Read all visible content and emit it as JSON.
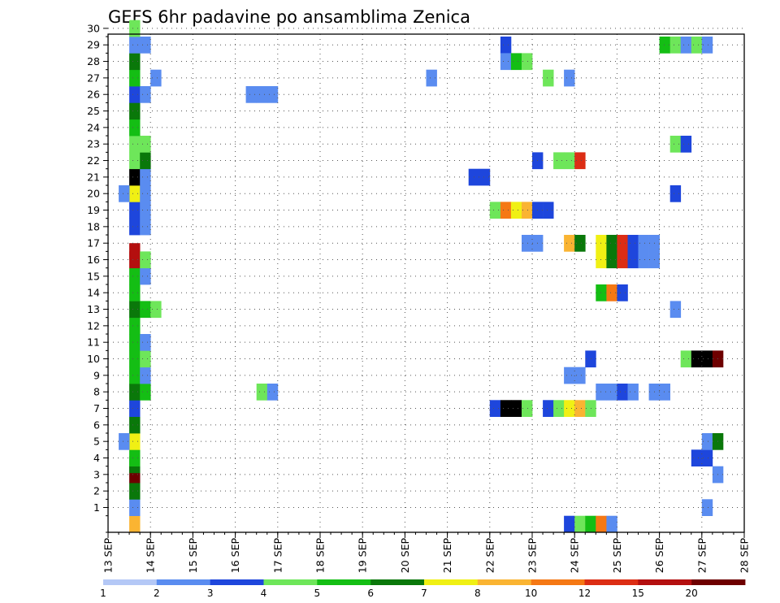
{
  "chart_data": {
    "type": "heatmap",
    "title": "GEFS 6hr padavine po ansamblima Zenica",
    "xlabel": "",
    "ylabel": "",
    "x_ticks": [
      "13 SEP",
      "14 SEP",
      "15 SEP",
      "16 SEP",
      "17 SEP",
      "18 SEP",
      "19 SEP",
      "20 SEP",
      "21 SEP",
      "22 SEP",
      "23 SEP",
      "24 SEP",
      "25 SEP",
      "26 SEP",
      "27 SEP",
      "28 SEP"
    ],
    "y_ticks": [
      "1",
      "2",
      "3",
      "4",
      "5",
      "6",
      "7",
      "8",
      "9",
      "10",
      "11",
      "12",
      "13",
      "14",
      "15",
      "16",
      "17",
      "18",
      "19",
      "20",
      "21",
      "22",
      "23",
      "24",
      "25",
      "26",
      "27",
      "28",
      "29",
      "30"
    ],
    "x_step": "6hr",
    "grid": true,
    "colorbar": {
      "labels": [
        "1",
        "2",
        "3",
        "4",
        "5",
        "6",
        "7",
        "8",
        "10",
        "12",
        "15",
        "20"
      ],
      "colors": [
        "#b4c8f6",
        "#5a8cf0",
        "#1e46dc",
        "#6ee65a",
        "#14be14",
        "#0a780a",
        "#f0f014",
        "#fab432",
        "#f57814",
        "#dc2d14",
        "#b40f0f",
        "#6e0000"
      ]
    },
    "cells": [
      [
        13.5,
        0,
        7
      ],
      [
        13.5,
        1,
        1
      ],
      [
        13.5,
        2,
        5
      ],
      [
        13.5,
        3,
        11
      ],
      [
        13.5,
        3.6,
        5
      ],
      [
        13.5,
        4,
        4
      ],
      [
        13.5,
        5,
        6
      ],
      [
        13.25,
        5,
        1
      ],
      [
        13.5,
        6,
        5
      ],
      [
        13.5,
        7,
        2
      ],
      [
        13.5,
        8,
        5
      ],
      [
        13.75,
        8,
        4
      ],
      [
        13.5,
        9,
        4
      ],
      [
        13.75,
        9,
        1
      ],
      [
        13.5,
        10,
        4
      ],
      [
        13.75,
        10,
        3
      ],
      [
        13.5,
        11,
        4
      ],
      [
        13.75,
        11,
        1
      ],
      [
        13.5,
        12,
        4
      ],
      [
        13.5,
        13,
        5
      ],
      [
        13.75,
        13,
        4
      ],
      [
        14.0,
        13,
        3
      ],
      [
        13.5,
        14,
        4
      ],
      [
        13.5,
        15,
        4
      ],
      [
        13.75,
        15,
        1
      ],
      [
        13.5,
        16,
        10
      ],
      [
        13.5,
        16.5,
        10
      ],
      [
        13.75,
        16,
        3
      ],
      [
        13.5,
        18,
        2
      ],
      [
        13.75,
        18,
        1
      ],
      [
        13.5,
        19,
        2
      ],
      [
        13.75,
        19,
        1
      ],
      [
        13.5,
        20,
        6
      ],
      [
        13.25,
        20,
        1
      ],
      [
        13.75,
        20,
        1
      ],
      [
        13.5,
        21,
        12
      ],
      [
        13.75,
        21,
        1
      ],
      [
        13.5,
        22,
        3
      ],
      [
        13.75,
        22,
        5
      ],
      [
        13.5,
        23,
        3
      ],
      [
        13.75,
        23,
        3
      ],
      [
        13.5,
        24,
        4
      ],
      [
        13.5,
        25,
        5
      ],
      [
        13.5,
        26,
        2
      ],
      [
        13.75,
        26,
        1
      ],
      [
        13.5,
        27,
        4
      ],
      [
        14.0,
        27,
        1
      ],
      [
        13.5,
        28,
        5
      ],
      [
        13.5,
        29,
        1
      ],
      [
        13.75,
        29,
        1
      ],
      [
        13.5,
        30,
        3
      ],
      [
        16.25,
        26,
        1
      ],
      [
        16.5,
        26,
        1
      ],
      [
        16.75,
        26,
        1
      ],
      [
        16.5,
        8,
        3
      ],
      [
        16.75,
        8,
        1
      ],
      [
        20.5,
        27,
        1
      ],
      [
        21.5,
        21,
        2
      ],
      [
        21.75,
        21,
        2
      ],
      [
        22.0,
        7,
        2
      ],
      [
        22.25,
        7,
        12
      ],
      [
        22.5,
        7,
        12
      ],
      [
        22.75,
        7,
        3
      ],
      [
        22.25,
        29,
        2
      ],
      [
        22.25,
        28,
        1
      ],
      [
        22.5,
        28,
        4
      ],
      [
        22.75,
        28,
        3
      ],
      [
        22.0,
        19,
        3
      ],
      [
        22.25,
        19,
        8
      ],
      [
        22.5,
        19,
        6
      ],
      [
        22.75,
        19,
        7
      ],
      [
        23.0,
        19,
        2
      ],
      [
        23.25,
        19,
        2
      ],
      [
        22.75,
        17,
        1
      ],
      [
        23.0,
        17,
        1
      ],
      [
        23.0,
        22,
        2
      ],
      [
        23.25,
        7,
        2
      ],
      [
        23.5,
        7,
        3
      ],
      [
        23.75,
        7,
        6
      ],
      [
        24.0,
        7,
        7
      ],
      [
        24.25,
        7,
        3
      ],
      [
        23.25,
        27,
        3
      ],
      [
        23.5,
        22,
        3
      ],
      [
        23.75,
        22,
        3
      ],
      [
        24.0,
        22,
        9
      ],
      [
        23.75,
        17,
        7
      ],
      [
        24.0,
        17,
        5
      ],
      [
        23.75,
        27,
        1
      ],
      [
        23.75,
        9,
        1
      ],
      [
        24.0,
        9,
        1
      ],
      [
        24.25,
        10,
        2
      ],
      [
        23.75,
        0,
        2
      ],
      [
        24.0,
        0,
        3
      ],
      [
        24.25,
        0,
        4
      ],
      [
        24.5,
        0,
        8
      ],
      [
        24.75,
        0,
        1
      ],
      [
        24.5,
        17,
        6
      ],
      [
        24.75,
        17,
        5
      ],
      [
        25.0,
        17,
        9
      ],
      [
        25.25,
        17,
        2
      ],
      [
        25.5,
        17,
        1
      ],
      [
        25.75,
        17,
        1
      ],
      [
        24.5,
        16,
        6
      ],
      [
        24.75,
        16,
        5
      ],
      [
        25.0,
        16,
        9
      ],
      [
        25.25,
        16,
        2
      ],
      [
        25.5,
        16,
        1
      ],
      [
        25.75,
        16,
        1
      ],
      [
        24.5,
        14,
        4
      ],
      [
        24.75,
        14,
        8
      ],
      [
        25.0,
        14,
        2
      ],
      [
        24.5,
        8,
        1
      ],
      [
        24.75,
        8,
        1
      ],
      [
        25.0,
        8,
        2
      ],
      [
        25.25,
        8,
        1
      ],
      [
        25.75,
        8,
        1
      ],
      [
        26.0,
        8,
        1
      ],
      [
        26.25,
        13,
        1
      ],
      [
        26.25,
        20,
        2
      ],
      [
        26.25,
        23,
        3
      ],
      [
        26.5,
        23,
        2
      ],
      [
        26.0,
        29,
        4
      ],
      [
        26.25,
        29,
        3
      ],
      [
        26.5,
        29,
        1
      ],
      [
        26.75,
        29,
        3
      ],
      [
        27.0,
        29,
        1
      ],
      [
        26.75,
        4,
        2
      ],
      [
        27.0,
        4,
        2
      ],
      [
        27.0,
        5,
        1
      ],
      [
        27.25,
        5,
        5
      ],
      [
        27.0,
        1,
        1
      ],
      [
        27.25,
        3,
        1
      ],
      [
        26.5,
        10,
        3
      ],
      [
        26.75,
        10,
        12
      ],
      [
        27.0,
        10,
        12
      ],
      [
        27.25,
        10,
        11
      ]
    ]
  }
}
